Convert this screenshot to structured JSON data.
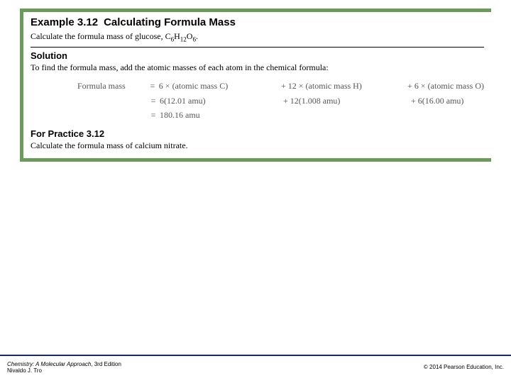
{
  "example": {
    "number_label": "Example 3.12",
    "title": "Calculating Formula Mass",
    "problem_prefix": "Calculate the formula mass of glucose, C",
    "sub1": "6",
    "mid1": "H",
    "sub2": "12",
    "mid2": "O",
    "sub3": "6",
    "problem_suffix": "."
  },
  "solution": {
    "heading": "Solution",
    "intro": "To find the formula mass, add the atomic masses of each atom in the chemical formula:",
    "row1": {
      "lhs": "Formula mass",
      "eq": "=",
      "t1": "6 × (atomic mass C)",
      "t2": "+  12 × (atomic mass H)",
      "t3": "+  6 × (atomic mass O)"
    },
    "row2": {
      "lhs": "",
      "eq": "=",
      "t1": "6(12.01 amu)",
      "t2": "+  12(1.008 amu)",
      "t3": "+  6(16.00 amu)"
    },
    "row3": {
      "lhs": "",
      "eq": "=",
      "t1": "180.16 amu",
      "t2": "",
      "t3": ""
    }
  },
  "practice": {
    "heading": "For Practice 3.12",
    "text": "Calculate the formula mass of calcium nitrate."
  },
  "footer": {
    "book_title": "Chemistry: A Molecular Approach",
    "edition": ", 3rd Edition",
    "author": "Nivaldo J. Tro",
    "copyright": "© 2014 Pearson Education, Inc."
  },
  "colors": {
    "box_border": "#6a9b5a",
    "footer_bar": "#1a2a6c",
    "formula_text": "#555555",
    "body_text": "#000000",
    "background": "#ffffff"
  }
}
